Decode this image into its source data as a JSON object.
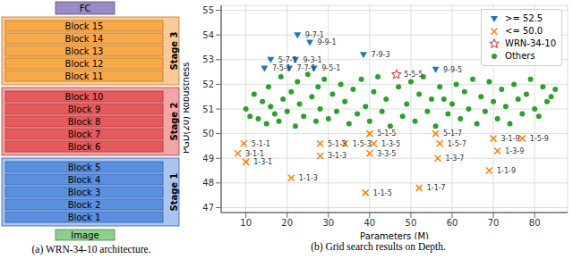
{
  "diagram": {
    "caption": "(a) WRN-34-10 architecture.",
    "head": "FC",
    "input": "Image",
    "stages": [
      {
        "label": "Stage 3",
        "blocks": [
          "Block 15",
          "Block 14",
          "Block 13",
          "Block 12",
          "Block 11"
        ]
      },
      {
        "label": "Stage 2",
        "blocks": [
          "Block 10",
          "Block 9",
          "Block 8",
          "Block 7",
          "Block 6"
        ]
      },
      {
        "label": "Stage 1",
        "blocks": [
          "Block 5",
          "Block 4",
          "Block 3",
          "Block 2",
          "Block 1"
        ]
      }
    ]
  },
  "chart_data": {
    "type": "scatter",
    "caption": "(b) Grid search results on Depth.",
    "x_label": "Parameters (M)",
    "y_label": "PGD(20) Robustness",
    "xlim": [
      4,
      88
    ],
    "xticks": [
      10,
      20,
      30,
      40,
      50,
      60,
      70,
      80
    ],
    "ylim": [
      46.8,
      55.2
    ],
    "yticks": [
      47,
      48,
      49,
      50,
      51,
      52,
      53,
      54,
      55
    ],
    "grid": true,
    "legend": "upper right",
    "series": [
      {
        "name": ">= 52.5",
        "color": "#1f77b4",
        "marker": "triangle-down",
        "x": [
          14.5,
          16,
          20.5,
          22.5,
          22,
          25.5,
          26.5,
          38.5,
          56
        ],
        "values": [
          52.65,
          53.0,
          52.65,
          54.0,
          53.0,
          53.7,
          52.65,
          53.2,
          52.6
        ],
        "point_labels": [
          "7-5-1",
          "5-7-1",
          "7-7-1",
          "9-7-1",
          "9-3-1",
          "9-9-1",
          "9-5-1",
          "7-9-3",
          "9-9-5"
        ]
      },
      {
        "name": "<= 50.0",
        "color": "#ff7f0e",
        "marker": "x",
        "x": [
          9.5,
          8,
          10,
          21,
          28,
          34,
          28,
          39,
          40,
          41,
          40,
          52,
          56,
          57,
          56.5,
          69,
          70,
          71,
          77
        ],
        "values": [
          49.6,
          49.2,
          48.85,
          48.2,
          49.6,
          49.6,
          49.1,
          47.6,
          50.0,
          49.6,
          49.2,
          47.8,
          50.0,
          49.6,
          49.0,
          48.5,
          49.8,
          49.3,
          49.8
        ],
        "point_labels": [
          "5-1-1",
          "3-1-1",
          "1-3-1",
          "1-1-3",
          "5-1-3",
          "1-5-3",
          "3-1-3",
          "1-1-5",
          "5-1-5",
          "1-3-5",
          "3-3-5",
          "1-1-7",
          "5-1-7",
          "1-5-7",
          "1-3-7",
          "1-1-9",
          "3-1-9",
          "1-3-9",
          "1-5-9"
        ]
      },
      {
        "name": "WRN-34-10",
        "color": "#d62728",
        "marker": "star",
        "x": [
          46.5
        ],
        "values": [
          52.4
        ],
        "point_labels": [
          "5-5-5"
        ]
      },
      {
        "name": "Others",
        "color": "#2ca02c",
        "marker": "circle",
        "x": [
          10,
          11,
          12,
          13,
          14,
          15,
          15.5,
          16,
          17,
          18,
          18.5,
          19,
          20,
          21,
          22,
          22.5,
          23,
          24,
          25,
          26,
          27,
          27.5,
          28,
          29,
          30,
          31,
          32,
          33,
          34,
          35,
          36,
          37,
          38,
          39,
          40,
          41,
          42,
          43,
          44,
          45,
          47,
          48,
          49,
          50,
          51,
          52,
          53,
          54,
          55,
          56,
          57,
          58,
          59,
          60,
          61,
          62,
          63,
          64,
          65,
          66,
          67,
          68,
          69,
          70,
          71,
          72,
          73,
          74,
          75,
          76,
          77,
          78,
          79,
          80,
          81,
          82,
          83,
          84,
          85
        ],
        "values": [
          51.0,
          50.7,
          51.6,
          50.6,
          51.3,
          50.4,
          51.9,
          51.1,
          50.8,
          50.5,
          52.3,
          51.4,
          50.9,
          51.7,
          50.3,
          52.1,
          51.2,
          50.7,
          52.4,
          51.5,
          50.5,
          51.9,
          51.0,
          52.2,
          50.6,
          51.6,
          50.9,
          52.0,
          51.3,
          50.4,
          51.8,
          50.8,
          52.2,
          51.1,
          50.5,
          51.7,
          52.3,
          50.9,
          51.4,
          50.3,
          51.9,
          50.7,
          51.2,
          52.1,
          50.5,
          51.6,
          52.3,
          50.9,
          51.4,
          50.3,
          51.9,
          51.4,
          50.8,
          51.2,
          52.0,
          50.6,
          51.7,
          51.0,
          52.2,
          50.4,
          51.5,
          50.9,
          52.1,
          51.3,
          50.6,
          51.8,
          51.1,
          50.4,
          52.0,
          51.4,
          50.8,
          51.6,
          52.2,
          51.0,
          50.7,
          51.9,
          51.3,
          51.5,
          51.8
        ]
      }
    ]
  }
}
